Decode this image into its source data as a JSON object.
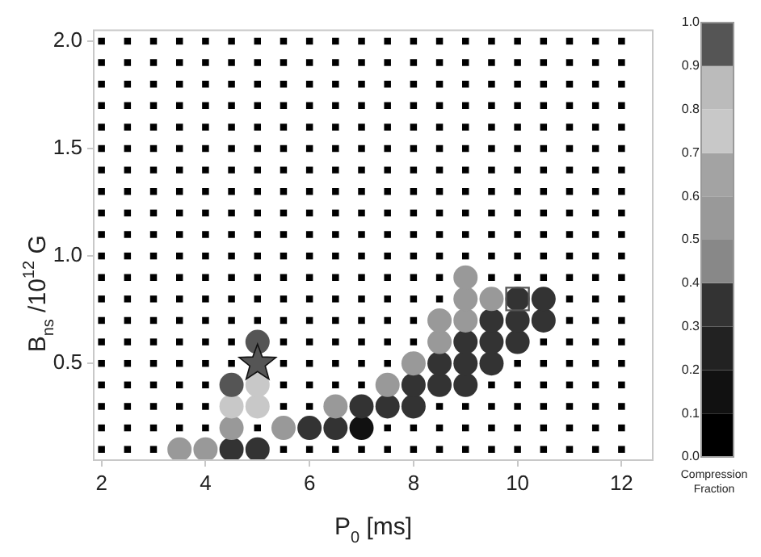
{
  "chart_data": {
    "type": "scatter",
    "xlabel": "P$_{0}$ [ms]",
    "ylabel": "B$_{ns}$ /10$^{12}$ G",
    "clabel": "Compression Fraction",
    "xlim": [
      1.85,
      12.6
    ],
    "xticks": [
      2,
      4,
      6,
      8,
      10,
      12
    ],
    "ylim": [
      0.05,
      2.05
    ],
    "yticks": [
      0.5,
      {
        "value": 1,
        "label": "1.0"
      },
      1.5,
      {
        "value": 2,
        "label": "2.0"
      }
    ],
    "clim": [
      0,
      1
    ],
    "cticks": [
      {
        "value": 0,
        "label": "0.0"
      },
      0.1,
      0.2,
      0.3,
      0.4,
      0.5,
      0.6,
      0.7,
      0.8,
      0.9,
      {
        "value": 1,
        "label": "1.0"
      }
    ],
    "grid": false,
    "legend": false,
    "series": [
      {
        "color": "#000000",
        "marker": "square",
        "x": [
          2,
          2.5,
          3,
          5.5,
          6,
          6.5,
          7,
          7.5,
          8,
          8.5,
          9,
          9.5,
          10,
          10.5,
          11,
          11.5,
          12
        ],
        "values": [
          0.1,
          0.1,
          0.1,
          0.1,
          0.1,
          0.1,
          0.1,
          0.1,
          0.1,
          0.1,
          0.1,
          0.1,
          0.1,
          0.1,
          0.1,
          0.1,
          0.1
        ]
      },
      {
        "color": "#000000",
        "marker": "square",
        "x": [
          2,
          2.5,
          3,
          3.5,
          4,
          5,
          7.5,
          8,
          8.5,
          9,
          9.5,
          10,
          10.5,
          11,
          11.5,
          12
        ],
        "values": [
          0.2,
          0.2,
          0.2,
          0.2,
          0.2,
          0.2,
          0.2,
          0.2,
          0.2,
          0.2,
          0.2,
          0.2,
          0.2,
          0.2,
          0.2,
          0.2
        ]
      },
      {
        "color": "#000000",
        "marker": "square",
        "x": [
          2,
          2.5,
          3,
          3.5,
          4,
          5.5,
          6,
          8.5,
          9,
          9.5,
          10,
          10.5,
          11,
          11.5,
          12
        ],
        "values": [
          0.3,
          0.3,
          0.3,
          0.3,
          0.3,
          0.3,
          0.3,
          0.3,
          0.3,
          0.3,
          0.3,
          0.3,
          0.3,
          0.3,
          0.3
        ]
      },
      {
        "color": "#000000",
        "marker": "square",
        "x": [
          2,
          2.5,
          3,
          3.5,
          4,
          5.5,
          6,
          6.5,
          7,
          9.5,
          10,
          10.5,
          11,
          11.5,
          12
        ],
        "values": [
          0.4,
          0.4,
          0.4,
          0.4,
          0.4,
          0.4,
          0.4,
          0.4,
          0.4,
          0.4,
          0.4,
          0.4,
          0.4,
          0.4,
          0.4
        ]
      },
      {
        "color": "#000000",
        "marker": "square",
        "x": [
          2,
          2.5,
          3,
          3.5,
          4,
          4.5,
          5.5,
          6,
          6.5,
          7,
          7.5,
          10,
          10.5,
          11,
          11.5,
          12
        ],
        "values": [
          0.5,
          0.5,
          0.5,
          0.5,
          0.5,
          0.5,
          0.5,
          0.5,
          0.5,
          0.5,
          0.5,
          0.5,
          0.5,
          0.5,
          0.5,
          0.5
        ]
      },
      {
        "color": "#000000",
        "marker": "square",
        "x": [
          2,
          2.5,
          3,
          3.5,
          4,
          4.5,
          5.5,
          6,
          6.5,
          7,
          7.5,
          8,
          10.5,
          11,
          11.5,
          12
        ],
        "values": [
          0.6,
          0.6,
          0.6,
          0.6,
          0.6,
          0.6,
          0.6,
          0.6,
          0.6,
          0.6,
          0.6,
          0.6,
          0.6,
          0.6,
          0.6,
          0.6
        ]
      },
      {
        "color": "#000000",
        "marker": "square",
        "x": [
          2,
          2.5,
          3,
          3.5,
          4,
          4.5,
          5,
          5.5,
          6,
          6.5,
          7,
          7.5,
          8,
          11,
          11.5,
          12
        ],
        "values": [
          0.7,
          0.7,
          0.7,
          0.7,
          0.7,
          0.7,
          0.7,
          0.7,
          0.7,
          0.7,
          0.7,
          0.7,
          0.7,
          0.7,
          0.7,
          0.7
        ]
      },
      {
        "color": "#000000",
        "marker": "square",
        "x": [
          2,
          2.5,
          3,
          3.5,
          4,
          4.5,
          5,
          5.5,
          6,
          6.5,
          7,
          7.5,
          8,
          8.5,
          11,
          11.5,
          12
        ],
        "values": [
          0.8,
          0.8,
          0.8,
          0.8,
          0.8,
          0.8,
          0.8,
          0.8,
          0.8,
          0.8,
          0.8,
          0.8,
          0.8,
          0.8,
          0.8,
          0.8,
          0.8
        ]
      },
      {
        "color": "#000000",
        "marker": "square",
        "x": [
          2,
          2.5,
          3,
          3.5,
          4,
          4.5,
          5,
          5.5,
          6,
          6.5,
          7,
          7.5,
          8,
          8.5,
          9.5,
          10,
          10.5,
          11,
          11.5,
          12
        ],
        "values": [
          0.9,
          0.9,
          0.9,
          0.9,
          0.9,
          0.9,
          0.9,
          0.9,
          0.9,
          0.9,
          0.9,
          0.9,
          0.9,
          0.9,
          0.9,
          0.9,
          0.9,
          0.9,
          0.9,
          0.9
        ]
      },
      {
        "color": "#000000",
        "marker": "square",
        "x": [
          2,
          2.5,
          3,
          3.5,
          4,
          4.5,
          5,
          5.5,
          6,
          6.5,
          7,
          7.5,
          8,
          8.5,
          9,
          9.5,
          10,
          10.5,
          11,
          11.5,
          12
        ],
        "values": [
          1,
          1,
          1,
          1,
          1,
          1,
          1,
          1,
          1,
          1,
          1,
          1,
          1,
          1,
          1,
          1,
          1,
          1,
          1,
          1,
          1
        ]
      },
      {
        "color": "#000000",
        "marker": "square",
        "x": [
          2,
          2.5,
          3,
          3.5,
          4,
          4.5,
          5,
          5.5,
          6,
          6.5,
          7,
          7.5,
          8,
          8.5,
          9,
          9.5,
          10,
          10.5,
          11,
          11.5,
          12
        ],
        "values": [
          1.1,
          1.1,
          1.1,
          1.1,
          1.1,
          1.1,
          1.1,
          1.1,
          1.1,
          1.1,
          1.1,
          1.1,
          1.1,
          1.1,
          1.1,
          1.1,
          1.1,
          1.1,
          1.1,
          1.1,
          1.1
        ]
      },
      {
        "color": "#000000",
        "marker": "square",
        "x": [
          2,
          2.5,
          3,
          3.5,
          4,
          4.5,
          5,
          5.5,
          6,
          6.5,
          7,
          7.5,
          8,
          8.5,
          9,
          9.5,
          10,
          10.5,
          11,
          11.5,
          12
        ],
        "values": [
          1.2,
          1.2,
          1.2,
          1.2,
          1.2,
          1.2,
          1.2,
          1.2,
          1.2,
          1.2,
          1.2,
          1.2,
          1.2,
          1.2,
          1.2,
          1.2,
          1.2,
          1.2,
          1.2,
          1.2,
          1.2
        ]
      },
      {
        "color": "#000000",
        "marker": "square",
        "x": [
          2,
          2.5,
          3,
          3.5,
          4,
          4.5,
          5,
          5.5,
          6,
          6.5,
          7,
          7.5,
          8,
          8.5,
          9,
          9.5,
          10,
          10.5,
          11,
          11.5,
          12
        ],
        "values": [
          1.3,
          1.3,
          1.3,
          1.3,
          1.3,
          1.3,
          1.3,
          1.3,
          1.3,
          1.3,
          1.3,
          1.3,
          1.3,
          1.3,
          1.3,
          1.3,
          1.3,
          1.3,
          1.3,
          1.3,
          1.3
        ]
      },
      {
        "color": "#000000",
        "marker": "square",
        "x": [
          2,
          2.5,
          3,
          3.5,
          4,
          4.5,
          5,
          5.5,
          6,
          6.5,
          7,
          7.5,
          8,
          8.5,
          9,
          9.5,
          10,
          10.5,
          11,
          11.5,
          12
        ],
        "values": [
          1.4,
          1.4,
          1.4,
          1.4,
          1.4,
          1.4,
          1.4,
          1.4,
          1.4,
          1.4,
          1.4,
          1.4,
          1.4,
          1.4,
          1.4,
          1.4,
          1.4,
          1.4,
          1.4,
          1.4,
          1.4
        ]
      },
      {
        "color": "#000000",
        "marker": "square",
        "x": [
          2,
          2.5,
          3,
          3.5,
          4,
          4.5,
          5,
          5.5,
          6,
          6.5,
          7,
          7.5,
          8,
          8.5,
          9,
          9.5,
          10,
          10.5,
          11,
          11.5,
          12
        ],
        "values": [
          1.5,
          1.5,
          1.5,
          1.5,
          1.5,
          1.5,
          1.5,
          1.5,
          1.5,
          1.5,
          1.5,
          1.5,
          1.5,
          1.5,
          1.5,
          1.5,
          1.5,
          1.5,
          1.5,
          1.5,
          1.5
        ]
      },
      {
        "color": "#000000",
        "marker": "square",
        "x": [
          2,
          2.5,
          3,
          3.5,
          4,
          4.5,
          5,
          5.5,
          6,
          6.5,
          7,
          7.5,
          8,
          8.5,
          9,
          9.5,
          10,
          10.5,
          11,
          11.5,
          12
        ],
        "values": [
          1.6,
          1.6,
          1.6,
          1.6,
          1.6,
          1.6,
          1.6,
          1.6,
          1.6,
          1.6,
          1.6,
          1.6,
          1.6,
          1.6,
          1.6,
          1.6,
          1.6,
          1.6,
          1.6,
          1.6,
          1.6
        ]
      },
      {
        "color": "#000000",
        "marker": "square",
        "x": [
          2,
          2.5,
          3,
          3.5,
          4,
          4.5,
          5,
          5.5,
          6,
          6.5,
          7,
          7.5,
          8,
          8.5,
          9,
          9.5,
          10,
          10.5,
          11,
          11.5,
          12
        ],
        "values": [
          1.7,
          1.7,
          1.7,
          1.7,
          1.7,
          1.7,
          1.7,
          1.7,
          1.7,
          1.7,
          1.7,
          1.7,
          1.7,
          1.7,
          1.7,
          1.7,
          1.7,
          1.7,
          1.7,
          1.7,
          1.7
        ]
      },
      {
        "color": "#000000",
        "marker": "square",
        "x": [
          2,
          2.5,
          3,
          3.5,
          4,
          4.5,
          5,
          5.5,
          6,
          6.5,
          7,
          7.5,
          8,
          8.5,
          9,
          9.5,
          10,
          10.5,
          11,
          11.5,
          12
        ],
        "values": [
          1.8,
          1.8,
          1.8,
          1.8,
          1.8,
          1.8,
          1.8,
          1.8,
          1.8,
          1.8,
          1.8,
          1.8,
          1.8,
          1.8,
          1.8,
          1.8,
          1.8,
          1.8,
          1.8,
          1.8,
          1.8
        ]
      },
      {
        "color": "#000000",
        "marker": "square",
        "x": [
          2,
          2.5,
          3,
          3.5,
          4,
          4.5,
          5,
          5.5,
          6,
          6.5,
          7,
          7.5,
          8,
          8.5,
          9,
          9.5,
          10,
          10.5,
          11,
          11.5,
          12
        ],
        "values": [
          1.9,
          1.9,
          1.9,
          1.9,
          1.9,
          1.9,
          1.9,
          1.9,
          1.9,
          1.9,
          1.9,
          1.9,
          1.9,
          1.9,
          1.9,
          1.9,
          1.9,
          1.9,
          1.9,
          1.9,
          1.9
        ]
      },
      {
        "color": "#000000",
        "marker": "square",
        "x": [
          2,
          2.5,
          3,
          3.5,
          4,
          4.5,
          5,
          5.5,
          6,
          6.5,
          7,
          7.5,
          8,
          8.5,
          9,
          9.5,
          10,
          10.5,
          11,
          11.5,
          12
        ],
        "values": [
          2,
          2,
          2,
          2,
          2,
          2,
          2,
          2,
          2,
          2,
          2,
          2,
          2,
          2,
          2,
          2,
          2,
          2,
          2,
          2,
          2
        ]
      },
      {
        "marker": "circle",
        "x": [
          3.5,
          4,
          4.5,
          5,
          4.5,
          5.5,
          6,
          6.5,
          7,
          4.5,
          5,
          6.5,
          7,
          7.5,
          8,
          4.5,
          5,
          7.5,
          8,
          8.5,
          9,
          8,
          8.5,
          9,
          9.5,
          5,
          8.5,
          9,
          9.5,
          10,
          8.5,
          9,
          9.5,
          10,
          10.5,
          9,
          9.5,
          10,
          10.5,
          9
        ],
        "values": [
          0.1,
          0.1,
          0.1,
          0.1,
          0.2,
          0.2,
          0.2,
          0.2,
          0.2,
          0.3,
          0.3,
          0.3,
          0.3,
          0.3,
          0.3,
          0.4,
          0.4,
          0.4,
          0.4,
          0.4,
          0.4,
          0.5,
          0.5,
          0.5,
          0.5,
          0.6,
          0.6,
          0.6,
          0.6,
          0.6,
          0.7,
          0.7,
          0.7,
          0.7,
          0.7,
          0.8,
          0.8,
          0.8,
          0.8,
          0.9
        ],
        "colors": [
          "#999999",
          "#999999",
          "#333333",
          "#333333",
          "#999999",
          "#999999",
          "#333333",
          "#333333",
          "#111111",
          "#c8c8c8",
          "#c8c8c8",
          "#999999",
          "#333333",
          "#333333",
          "#333333",
          "#555555",
          "#c8c8c8",
          "#999999",
          "#333333",
          "#333333",
          "#333333",
          "#999999",
          "#333333",
          "#333333",
          "#333333",
          "#555555",
          "#999999",
          "#333333",
          "#333333",
          "#333333",
          "#999999",
          "#999999",
          "#333333",
          "#333333",
          "#333333",
          "#999999",
          "#999999",
          "#333333",
          "#333333",
          "#999999"
        ]
      },
      {
        "color": "#555555",
        "marker": "star",
        "x": [
          5
        ],
        "values": [
          0.5
        ]
      },
      {
        "color": "#555555",
        "marker": "square",
        "line_style": "solid",
        "x": [
          10
        ],
        "values": [
          0.8
        ]
      }
    ]
  }
}
